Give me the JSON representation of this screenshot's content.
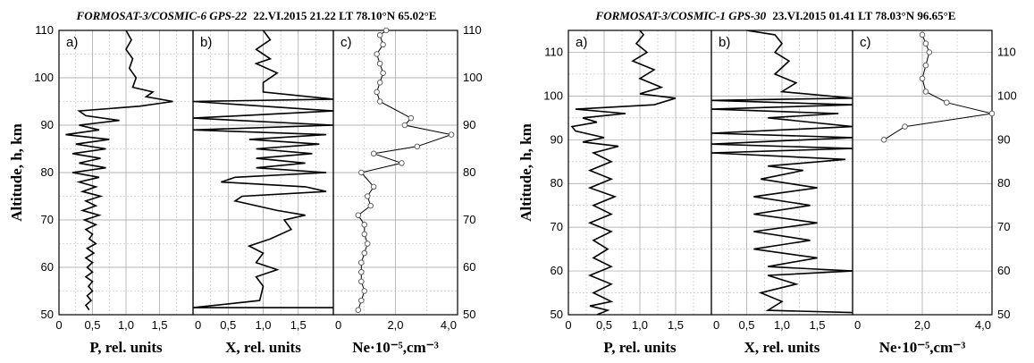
{
  "chart_data": [
    {
      "type": "line",
      "title_italic": "FORMOSAT-3/COSMIC-6 GPS-22",
      "title_rest": "22.VI.2015 21.22 LT 78.10°N 65.02°E",
      "ylabel": "Altitude, h, km",
      "ylim": [
        50,
        110
      ],
      "yticks": [
        "50",
        "60",
        "70",
        "80",
        "90",
        "100",
        "110"
      ],
      "panels": [
        {
          "label": "a)",
          "xlabel": "P, rel. units",
          "xlim": [
            0,
            2.0
          ],
          "xticks": [
            {
              "v": 0,
              "t": "0"
            },
            {
              "v": 0.5,
              "t": "0,5"
            },
            {
              "v": 1.0,
              "t": "1,0"
            },
            {
              "v": 1.5,
              "t": "1,5"
            }
          ],
          "points": [
            [
              0.45,
              51
            ],
            [
              0.4,
              52
            ],
            [
              0.48,
              53
            ],
            [
              0.42,
              54
            ],
            [
              0.5,
              55
            ],
            [
              0.44,
              56
            ],
            [
              0.5,
              57
            ],
            [
              0.4,
              58
            ],
            [
              0.5,
              59
            ],
            [
              0.42,
              60
            ],
            [
              0.5,
              61
            ],
            [
              0.4,
              62
            ],
            [
              0.52,
              63
            ],
            [
              0.42,
              64
            ],
            [
              0.55,
              65
            ],
            [
              0.45,
              66
            ],
            [
              0.5,
              67
            ],
            [
              0.4,
              68
            ],
            [
              0.55,
              69
            ],
            [
              0.38,
              70
            ],
            [
              0.6,
              71
            ],
            [
              0.35,
              72
            ],
            [
              0.55,
              73
            ],
            [
              0.4,
              74
            ],
            [
              0.62,
              75
            ],
            [
              0.35,
              76
            ],
            [
              0.55,
              77
            ],
            [
              0.3,
              78
            ],
            [
              0.6,
              79
            ],
            [
              0.2,
              80
            ],
            [
              0.7,
              81
            ],
            [
              0.3,
              82
            ],
            [
              0.62,
              83
            ],
            [
              0.2,
              84
            ],
            [
              0.7,
              85
            ],
            [
              0.25,
              86
            ],
            [
              0.75,
              87
            ],
            [
              0.1,
              88
            ],
            [
              0.6,
              89
            ],
            [
              0.3,
              90
            ],
            [
              0.9,
              91
            ],
            [
              0.4,
              92
            ],
            [
              0.3,
              93
            ],
            [
              1.2,
              94
            ],
            [
              1.7,
              95
            ],
            [
              1.3,
              96
            ],
            [
              1.4,
              97
            ],
            [
              1.1,
              98
            ],
            [
              1.15,
              100
            ],
            [
              1.05,
              102
            ],
            [
              1.1,
              104
            ],
            [
              1.0,
              106
            ],
            [
              1.08,
              108
            ],
            [
              1.0,
              110
            ]
          ]
        },
        {
          "label": "b)",
          "xlabel": "X, rel. units",
          "xlim": [
            0,
            2.0
          ],
          "xticks": [
            {
              "v": 0,
              "t": "0"
            },
            {
              "v": 0.5,
              "t": "0,5"
            },
            {
              "v": 1.0,
              "t": "1,0"
            },
            {
              "v": 1.5,
              "t": "1,5"
            }
          ],
          "points": [
            [
              2.0,
              51.5
            ],
            [
              0,
              51.5
            ],
            [
              0.95,
              53
            ],
            [
              1.0,
              56
            ],
            [
              0.9,
              58
            ],
            [
              1.2,
              59.5
            ],
            [
              0.9,
              61
            ],
            [
              1.0,
              63
            ],
            [
              0.8,
              64.5
            ],
            [
              1.1,
              66
            ],
            [
              1.4,
              68
            ],
            [
              1.3,
              70
            ],
            [
              1.6,
              71
            ],
            [
              1.2,
              72
            ],
            [
              0.6,
              74
            ],
            [
              0.7,
              75
            ],
            [
              1.9,
              76
            ],
            [
              1.6,
              77
            ],
            [
              0.4,
              78
            ],
            [
              0.6,
              79
            ],
            [
              1.9,
              80
            ],
            [
              0.9,
              81
            ],
            [
              1.6,
              82
            ],
            [
              0.9,
              83
            ],
            [
              1.7,
              84
            ],
            [
              0.9,
              85
            ],
            [
              1.8,
              86
            ],
            [
              0.8,
              87
            ],
            [
              1.9,
              88
            ],
            [
              0,
              89
            ],
            [
              2.0,
              90
            ],
            [
              0,
              91.5
            ],
            [
              2.0,
              93
            ],
            [
              0,
              95
            ],
            [
              2.0,
              95.5
            ],
            [
              1.0,
              97
            ],
            [
              1.0,
              99
            ],
            [
              1.2,
              101
            ],
            [
              0.9,
              103
            ],
            [
              1.1,
              104
            ],
            [
              0.9,
              106
            ],
            [
              1.1,
              108
            ],
            [
              1.0,
              110
            ]
          ]
        },
        {
          "label": "c)",
          "xlabel": "Ne·10⁻⁵,cm⁻³",
          "xlim": [
            0,
            4.0
          ],
          "xticks": [
            {
              "v": 0,
              "t": "0"
            },
            {
              "v": 2.0,
              "t": "2,0"
            },
            {
              "v": 4.0,
              "t": "4,0"
            }
          ],
          "right_yticks": [
            "50",
            "60",
            "70",
            "80",
            "90",
            "100",
            "110"
          ],
          "points": [
            [
              0.8,
              51
            ],
            [
              0.9,
              53
            ],
            [
              1.0,
              55
            ],
            [
              0.9,
              57
            ],
            [
              0.9,
              59
            ],
            [
              0.9,
              61
            ],
            [
              1.0,
              63
            ],
            [
              1.1,
              65
            ],
            [
              1.0,
              67
            ],
            [
              1.0,
              69
            ],
            [
              0.8,
              71
            ],
            [
              1.2,
              73
            ],
            [
              1.1,
              75
            ],
            [
              1.3,
              77
            ],
            [
              0.9,
              80
            ],
            [
              2.2,
              82
            ],
            [
              1.3,
              84
            ],
            [
              2.7,
              85.5
            ],
            [
              3.8,
              88
            ],
            [
              2.3,
              90
            ],
            [
              2.5,
              91.5
            ],
            [
              1.5,
              95
            ],
            [
              1.4,
              97
            ],
            [
              1.5,
              99
            ],
            [
              1.6,
              101
            ],
            [
              1.5,
              103
            ],
            [
              1.4,
              105
            ],
            [
              1.6,
              107
            ],
            [
              1.5,
              109
            ],
            [
              1.7,
              110
            ]
          ]
        }
      ]
    },
    {
      "type": "line",
      "title_italic": "FORMOSAT-3/COSMIC-1 GPS-30",
      "title_rest": "23.VI.2015 01.41 LT 78.03°N 96.65°E",
      "ylabel": "Altitude, h, km",
      "ylim": [
        50,
        115
      ],
      "yticks": [
        "50",
        "60",
        "70",
        "80",
        "90",
        "100",
        "110"
      ],
      "panels": [
        {
          "label": "a)",
          "xlabel": "P, rel. units",
          "xlim": [
            0,
            2.0
          ],
          "xticks": [
            {
              "v": 0,
              "t": "0"
            },
            {
              "v": 0.5,
              "t": "0,5"
            },
            {
              "v": 1.0,
              "t": "1,0"
            },
            {
              "v": 1.5,
              "t": "1,5"
            }
          ],
          "points": [
            [
              0.4,
              50
            ],
            [
              0.55,
              51
            ],
            [
              0.3,
              52
            ],
            [
              0.6,
              53
            ],
            [
              0.35,
              55
            ],
            [
              0.6,
              57
            ],
            [
              0.3,
              59
            ],
            [
              0.6,
              61
            ],
            [
              0.35,
              63
            ],
            [
              0.55,
              65
            ],
            [
              0.35,
              67
            ],
            [
              0.6,
              69
            ],
            [
              0.3,
              71
            ],
            [
              0.6,
              73
            ],
            [
              0.35,
              75
            ],
            [
              0.65,
              77
            ],
            [
              0.3,
              79
            ],
            [
              0.6,
              81
            ],
            [
              0.3,
              83
            ],
            [
              0.6,
              85
            ],
            [
              0.35,
              87
            ],
            [
              0.7,
              88.5
            ],
            [
              0.2,
              89.5
            ],
            [
              0.5,
              90.5
            ],
            [
              0.1,
              92
            ],
            [
              0.05,
              93
            ],
            [
              0.4,
              94
            ],
            [
              0.2,
              95
            ],
            [
              0.8,
              96
            ],
            [
              0.1,
              97
            ],
            [
              1.2,
              98
            ],
            [
              1.5,
              99.5
            ],
            [
              1.0,
              100.5
            ],
            [
              1.3,
              102
            ],
            [
              1.0,
              104
            ],
            [
              1.2,
              106
            ],
            [
              0.9,
              108
            ],
            [
              1.1,
              110
            ],
            [
              0.95,
              112
            ],
            [
              1.05,
              114
            ],
            [
              1.0,
              115
            ]
          ]
        },
        {
          "label": "b)",
          "xlabel": "X, rel. units",
          "xlim": [
            0,
            2.0
          ],
          "xticks": [
            {
              "v": 0,
              "t": "0"
            },
            {
              "v": 0.5,
              "t": "0,5"
            },
            {
              "v": 1.0,
              "t": "1,0"
            },
            {
              "v": 1.5,
              "t": "1,5"
            }
          ],
          "points": [
            [
              2.0,
              50.5
            ],
            [
              0.8,
              51
            ],
            [
              1.0,
              53
            ],
            [
              0.7,
              55
            ],
            [
              1.2,
              57
            ],
            [
              0.8,
              59
            ],
            [
              2.0,
              60
            ],
            [
              0.8,
              61
            ],
            [
              1.5,
              63
            ],
            [
              0.6,
              65
            ],
            [
              1.4,
              67
            ],
            [
              0.6,
              69
            ],
            [
              1.5,
              71
            ],
            [
              0.6,
              73
            ],
            [
              1.4,
              75
            ],
            [
              0.6,
              77
            ],
            [
              1.5,
              79
            ],
            [
              0.7,
              81
            ],
            [
              1.3,
              83
            ],
            [
              0.8,
              84
            ],
            [
              1.9,
              85.5
            ],
            [
              0,
              87
            ],
            [
              2.0,
              88
            ],
            [
              0,
              89
            ],
            [
              2.0,
              90.5
            ],
            [
              0,
              91.5
            ],
            [
              2.0,
              93
            ],
            [
              0.8,
              95
            ],
            [
              1.8,
              96
            ],
            [
              0,
              97
            ],
            [
              2.0,
              98
            ],
            [
              0,
              99
            ],
            [
              2.0,
              99.5
            ],
            [
              1.0,
              101
            ],
            [
              1.2,
              103
            ],
            [
              0.9,
              105
            ],
            [
              1.1,
              108
            ],
            [
              0.9,
              110
            ],
            [
              1.0,
              112
            ],
            [
              0.9,
              114
            ],
            [
              0.5,
              115
            ]
          ]
        },
        {
          "label": "c)",
          "xlabel": "Ne·10⁻⁵,cm⁻³",
          "xlim": [
            0,
            4.0
          ],
          "xticks": [
            {
              "v": 0,
              "t": "0"
            },
            {
              "v": 2.0,
              "t": "2,0"
            },
            {
              "v": 4.0,
              "t": "4,0"
            }
          ],
          "right_yticks": [
            "50",
            "60",
            "70",
            "80",
            "90",
            "100",
            "110"
          ],
          "points": [
            [
              0.9,
              90
            ],
            [
              1.5,
              93
            ],
            [
              4.0,
              96
            ],
            [
              2.7,
              98.5
            ],
            [
              2.1,
              101
            ],
            [
              2.0,
              104
            ],
            [
              2.1,
              107
            ],
            [
              2.2,
              110
            ],
            [
              2.1,
              112
            ],
            [
              2.0,
              114
            ]
          ]
        }
      ]
    }
  ]
}
